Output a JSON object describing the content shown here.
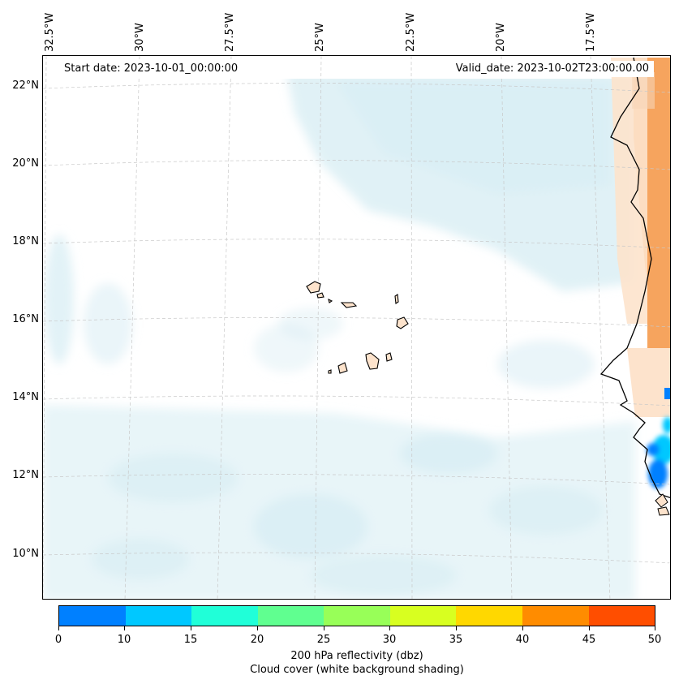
{
  "map": {
    "start_label": "Start date: 2023-10-01_00:00:00",
    "valid_label": "Valid_date: 2023-10-02T23:00:00.00",
    "lon_labels": [
      "32.5°W",
      "30°W",
      "27.5°W",
      "25°W",
      "22.5°W",
      "20°W",
      "17.5°W"
    ],
    "lat_labels": [
      "22°N",
      "20°N",
      "18°N",
      "16°N",
      "14°N",
      "12°N",
      "10°N"
    ],
    "features": [
      "Cape Verde islands",
      "West African coastline",
      "Cloud cover shading",
      "Reflectivity cells"
    ]
  },
  "colorbar": {
    "ticks": [
      "0",
      "10",
      "15",
      "20",
      "25",
      "30",
      "35",
      "40",
      "45",
      "50"
    ],
    "colors": [
      "#0080ff",
      "#00c8ff",
      "#20ffd8",
      "#60ff90",
      "#98ff58",
      "#d8ff20",
      "#ffd800",
      "#ff8c00",
      "#ff4e00"
    ],
    "title_line1": "200 hPa reflectivity (dbz)",
    "title_line2": "Cloud cover (white background shading)"
  },
  "colors": {
    "land": "#f6a45e",
    "land_light": "#fde3cc",
    "cloud": "#d6ecf3",
    "grid": "#c8c8c8"
  }
}
